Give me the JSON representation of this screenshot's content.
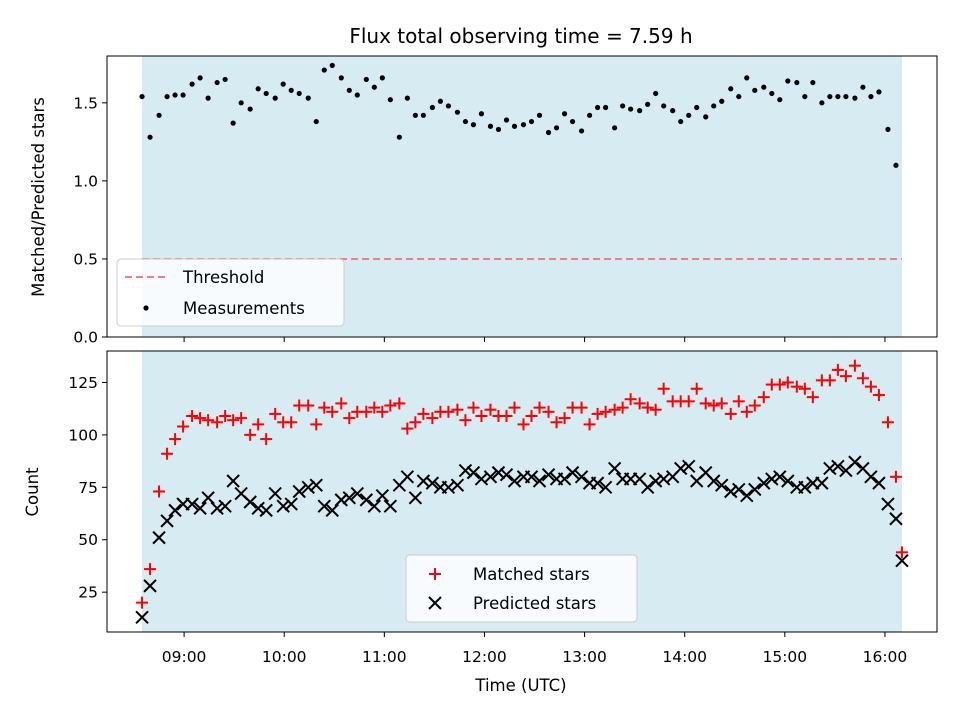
{
  "chart_data": {
    "type": "scatter",
    "title": "Flux total observing time = 7.59 h",
    "xlabel": "Time (UTC)",
    "x_unit": "hours UTC",
    "xlim": [
      8.23,
      16.52
    ],
    "xticks": [
      9,
      10,
      11,
      12,
      13,
      14,
      15,
      16
    ],
    "xtick_labels": [
      "09:00",
      "10:00",
      "11:00",
      "12:00",
      "13:00",
      "14:00",
      "15:00",
      "16:00"
    ],
    "observing_span": [
      8.58,
      16.17
    ],
    "span_color": "#add8e6",
    "panels": [
      {
        "ylabel": "Matched/Predicted stars",
        "ylim": [
          0.0,
          1.8
        ],
        "yticks": [
          0.0,
          0.5,
          1.0,
          1.5
        ],
        "ytick_labels": [
          "0.0",
          "0.5",
          "1.0",
          "1.5"
        ],
        "legend_position": "lower-left",
        "threshold": {
          "name": "Threshold",
          "value": 0.5,
          "color": "#f08080"
        },
        "series": [
          {
            "name": "Measurements",
            "marker": "dot",
            "color": "#000000",
            "x": [
              8.58,
              8.66,
              8.75,
              8.83,
              8.91,
              8.99,
              9.08,
              9.16,
              9.24,
              9.33,
              9.41,
              9.49,
              9.57,
              9.66,
              9.74,
              9.82,
              9.91,
              9.99,
              10.07,
              10.15,
              10.24,
              10.32,
              10.4,
              10.48,
              10.57,
              10.65,
              10.73,
              10.82,
              10.9,
              10.98,
              11.06,
              11.15,
              11.23,
              11.31,
              11.39,
              11.48,
              11.56,
              11.64,
              11.73,
              11.81,
              11.89,
              11.97,
              12.06,
              12.14,
              12.22,
              12.3,
              12.39,
              12.47,
              12.55,
              12.64,
              12.72,
              12.8,
              12.88,
              12.97,
              13.05,
              13.13,
              13.21,
              13.3,
              13.38,
              13.46,
              13.55,
              13.63,
              13.71,
              13.79,
              13.88,
              13.96,
              14.04,
              14.12,
              14.21,
              14.29,
              14.37,
              14.46,
              14.54,
              14.62,
              14.7,
              14.79,
              14.87,
              14.95,
              15.03,
              15.12,
              15.2,
              15.28,
              15.37,
              15.45,
              15.53,
              15.61,
              15.7,
              15.78,
              15.86,
              15.94,
              16.03,
              16.11
            ],
            "y": [
              1.54,
              1.28,
              1.42,
              1.54,
              1.55,
              1.55,
              1.62,
              1.66,
              1.53,
              1.63,
              1.65,
              1.37,
              1.5,
              1.46,
              1.59,
              1.56,
              1.53,
              1.62,
              1.58,
              1.56,
              1.53,
              1.38,
              1.71,
              1.74,
              1.66,
              1.58,
              1.55,
              1.65,
              1.6,
              1.66,
              1.52,
              1.28,
              1.53,
              1.42,
              1.42,
              1.47,
              1.51,
              1.48,
              1.44,
              1.38,
              1.36,
              1.43,
              1.35,
              1.33,
              1.39,
              1.35,
              1.36,
              1.38,
              1.42,
              1.31,
              1.34,
              1.43,
              1.38,
              1.32,
              1.42,
              1.47,
              1.47,
              1.34,
              1.48,
              1.46,
              1.45,
              1.49,
              1.56,
              1.48,
              1.45,
              1.38,
              1.42,
              1.47,
              1.41,
              1.48,
              1.51,
              1.59,
              1.54,
              1.66,
              1.58,
              1.6,
              1.56,
              1.52,
              1.64,
              1.63,
              1.54,
              1.63,
              1.5,
              1.54,
              1.54,
              1.54,
              1.53,
              1.6,
              1.54,
              1.57,
              1.33,
              1.1
            ]
          }
        ]
      },
      {
        "ylabel": "Count",
        "ylim": [
          6,
          140
        ],
        "yticks": [
          25,
          50,
          75,
          100,
          125
        ],
        "ytick_labels": [
          "25",
          "50",
          "75",
          "100",
          "125"
        ],
        "legend_position": "lower-center",
        "series": [
          {
            "name": "Matched stars",
            "marker": "plus",
            "color": "#ff0000",
            "x": [
              8.58,
              8.66,
              8.75,
              8.83,
              8.91,
              8.99,
              9.08,
              9.16,
              9.24,
              9.33,
              9.41,
              9.49,
              9.57,
              9.66,
              9.74,
              9.82,
              9.91,
              9.99,
              10.07,
              10.15,
              10.24,
              10.32,
              10.4,
              10.48,
              10.57,
              10.65,
              10.73,
              10.82,
              10.9,
              10.98,
              11.06,
              11.15,
              11.23,
              11.31,
              11.39,
              11.48,
              11.56,
              11.64,
              11.73,
              11.81,
              11.89,
              11.97,
              12.06,
              12.14,
              12.22,
              12.3,
              12.39,
              12.47,
              12.55,
              12.64,
              12.72,
              12.8,
              12.88,
              12.97,
              13.05,
              13.13,
              13.21,
              13.3,
              13.38,
              13.46,
              13.55,
              13.63,
              13.71,
              13.79,
              13.88,
              13.96,
              14.04,
              14.12,
              14.21,
              14.29,
              14.37,
              14.46,
              14.54,
              14.62,
              14.7,
              14.79,
              14.87,
              14.95,
              15.03,
              15.12,
              15.2,
              15.28,
              15.37,
              15.45,
              15.53,
              15.61,
              15.7,
              15.78,
              15.86,
              15.94,
              16.03,
              16.11,
              16.17
            ],
            "y": [
              20,
              36,
              73,
              91,
              98,
              104,
              109,
              108,
              107,
              106,
              109,
              107,
              108,
              100,
              105,
              98,
              110,
              106,
              106,
              114,
              114,
              105,
              113,
              111,
              115,
              108,
              111,
              111,
              113,
              111,
              114,
              115,
              103,
              106,
              110,
              108,
              111,
              111,
              112,
              107,
              113,
              109,
              112,
              109,
              109,
              113,
              105,
              109,
              113,
              111,
              106,
              108,
              113,
              113,
              105,
              110,
              111,
              112,
              113,
              117,
              115,
              113,
              112,
              122,
              116,
              116,
              116,
              122,
              115,
              114,
              115,
              110,
              116,
              111,
              114,
              118,
              124,
              124,
              125,
              123,
              122,
              118,
              126,
              126,
              131,
              128,
              133,
              127,
              123,
              119,
              106,
              80,
              44
            ]
          },
          {
            "name": "Predicted stars",
            "marker": "x",
            "color": "#000000",
            "x": [
              8.58,
              8.66,
              8.75,
              8.83,
              8.91,
              8.99,
              9.08,
              9.16,
              9.24,
              9.33,
              9.41,
              9.49,
              9.57,
              9.66,
              9.74,
              9.82,
              9.91,
              9.99,
              10.07,
              10.15,
              10.24,
              10.32,
              10.4,
              10.48,
              10.57,
              10.65,
              10.73,
              10.82,
              10.9,
              10.98,
              11.06,
              11.15,
              11.23,
              11.31,
              11.39,
              11.48,
              11.56,
              11.64,
              11.73,
              11.81,
              11.89,
              11.97,
              12.06,
              12.14,
              12.22,
              12.3,
              12.39,
              12.47,
              12.55,
              12.64,
              12.72,
              12.8,
              12.88,
              12.97,
              13.05,
              13.13,
              13.21,
              13.3,
              13.38,
              13.46,
              13.55,
              13.63,
              13.71,
              13.79,
              13.88,
              13.96,
              14.04,
              14.12,
              14.21,
              14.29,
              14.37,
              14.46,
              14.54,
              14.62,
              14.7,
              14.79,
              14.87,
              14.95,
              15.03,
              15.12,
              15.2,
              15.28,
              15.37,
              15.45,
              15.53,
              15.61,
              15.7,
              15.78,
              15.86,
              15.94,
              16.03,
              16.11,
              16.17
            ],
            "y": [
              13,
              28,
              51,
              59,
              64,
              67,
              67,
              65,
              70,
              65,
              66,
              78,
              72,
              68,
              65,
              64,
              72,
              66,
              67,
              73,
              75,
              76,
              66,
              64,
              69,
              70,
              72,
              69,
              66,
              71,
              66,
              76,
              80,
              70,
              78,
              77,
              75,
              75,
              76,
              83,
              82,
              79,
              80,
              82,
              81,
              78,
              80,
              80,
              78,
              81,
              79,
              79,
              82,
              80,
              77,
              77,
              75,
              84,
              79,
              79,
              79,
              75,
              78,
              79,
              80,
              84,
              85,
              78,
              82,
              78,
              76,
              73,
              74,
              71,
              74,
              77,
              79,
              80,
              78,
              75,
              75,
              77,
              77,
              84,
              85,
              83,
              87,
              84,
              80,
              77,
              67,
              60,
              40
            ]
          }
        ]
      }
    ]
  }
}
